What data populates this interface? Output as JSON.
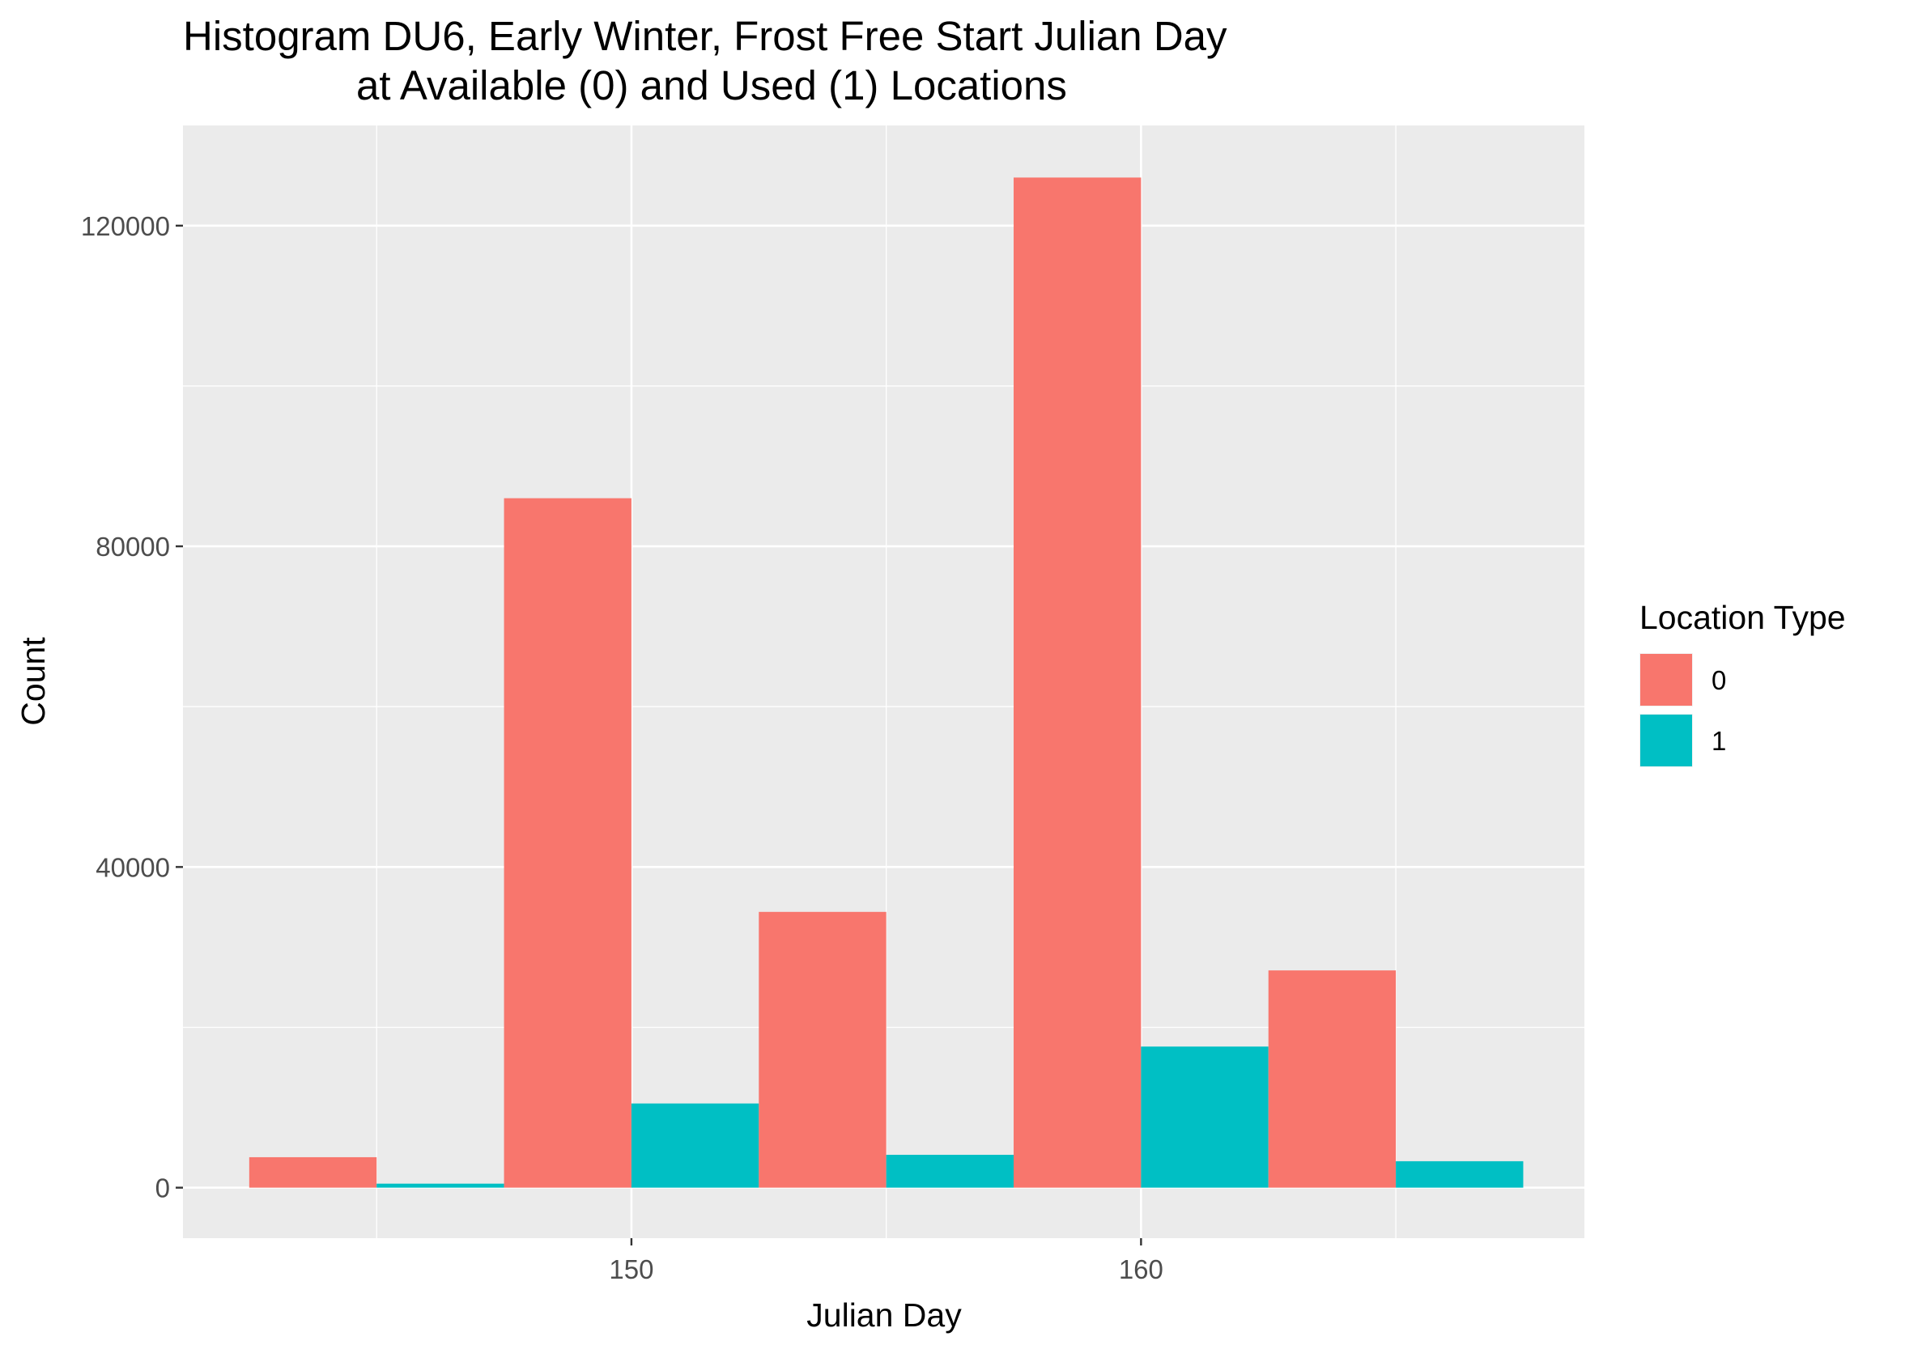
{
  "chart_data": {
    "type": "bar",
    "title_line1": "Histogram DU6, Early Winter, Frost Free Start Julian Day",
    "title_line2": "at Available (0) and Used (1) Locations",
    "xlabel": "Julian Day",
    "ylabel": "Count",
    "x_ticks": [
      150,
      160
    ],
    "y_ticks": [
      0,
      40000,
      80000,
      120000
    ],
    "xlim": [
      141.2,
      168.7
    ],
    "ylim": [
      -6300,
      132500
    ],
    "bin_width": 5,
    "categories": [
      145,
      150,
      155,
      160,
      165
    ],
    "series": [
      {
        "name": "0",
        "color": "#F8766D",
        "values": [
          3800,
          86000,
          34400,
          126000,
          27100
        ]
      },
      {
        "name": "1",
        "color": "#00BFC4",
        "values": [
          500,
          10500,
          4100,
          17600,
          3300
        ]
      }
    ],
    "legend": {
      "title": "Location Type",
      "position": "right"
    },
    "panel_background": "#EBEBEB",
    "grid": true
  }
}
